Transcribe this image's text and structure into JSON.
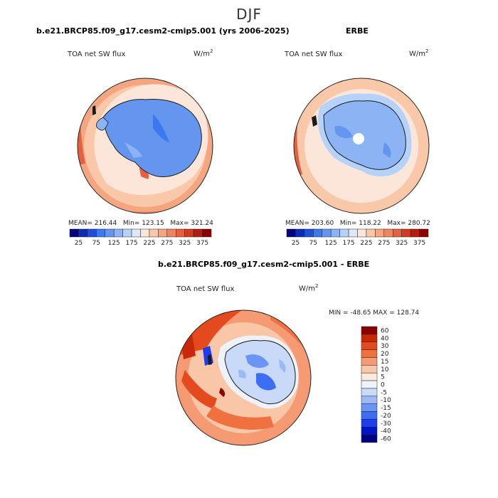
{
  "figure": {
    "season": "DJF",
    "top_left": {
      "title": "b.e21.BRCP85.f09_g17.cesm2-cmip5.001 (yrs 2006-2025)",
      "variable": "TOA net SW flux",
      "units_base": "W/m",
      "units_exp": "2",
      "mean_label": "MEAN=",
      "mean": "216.44",
      "min_label": "Min=",
      "min": "123.15",
      "max_label": "Max=",
      "max": "321.24"
    },
    "top_right": {
      "title": "ERBE",
      "variable": "TOA net SW flux",
      "units_base": "W/m",
      "units_exp": "2",
      "mean_label": "MEAN=",
      "mean": "203.60",
      "min_label": "Min=",
      "min": "118.22",
      "max_label": "Max=",
      "max": "280.72"
    },
    "bottom": {
      "title": "b.e21.BRCP85.f09_g17.cesm2-cmip5.001 - ERBE",
      "variable": "TOA net SW flux",
      "units_base": "W/m",
      "units_exp": "2",
      "minmax_text": "MIN = -48.65 MAX = 128.74"
    }
  },
  "chart_data": [
    {
      "type": "heatmap",
      "title": "b.e21.BRCP85.f09_g17.cesm2-cmip5.001 (yrs 2006-2025)",
      "projection": "south polar stereographic",
      "variable": "TOA net SW flux",
      "units": "W/m2",
      "stats": {
        "mean": 216.44,
        "min": 123.15,
        "max": 321.24
      },
      "colorbar_levels": [
        25,
        50,
        75,
        100,
        125,
        150,
        175,
        200,
        225,
        250,
        275,
        300,
        325,
        350,
        375
      ],
      "colorbar_tick_labels": [
        "25",
        "75",
        "125",
        "175",
        "225",
        "275",
        "325",
        "375"
      ],
      "colorbar_colors": [
        "#000080",
        "#0a2db4",
        "#1e50dc",
        "#3c78f0",
        "#6496f0",
        "#8cb4f5",
        "#b4d2fa",
        "#dce9fb",
        "#fbe6d9",
        "#f9c8a8",
        "#f5a680",
        "#ef8460",
        "#e4603e",
        "#d03c22",
        "#b41e0e",
        "#8c0000"
      ]
    },
    {
      "type": "heatmap",
      "title": "ERBE",
      "projection": "south polar stereographic",
      "variable": "TOA net SW flux",
      "units": "W/m2",
      "stats": {
        "mean": 203.6,
        "min": 118.22,
        "max": 280.72
      },
      "colorbar_levels": [
        25,
        50,
        75,
        100,
        125,
        150,
        175,
        200,
        225,
        250,
        275,
        300,
        325,
        350,
        375
      ],
      "colorbar_tick_labels": [
        "25",
        "75",
        "125",
        "175",
        "225",
        "275",
        "325",
        "375"
      ],
      "colorbar_colors": [
        "#000080",
        "#0a2db4",
        "#1e50dc",
        "#3c78f0",
        "#6496f0",
        "#8cb4f5",
        "#b4d2fa",
        "#dce9fb",
        "#fbe6d9",
        "#f9c8a8",
        "#f5a680",
        "#ef8460",
        "#e4603e",
        "#d03c22",
        "#b41e0e",
        "#8c0000"
      ]
    },
    {
      "type": "heatmap",
      "title": "b.e21.BRCP85.f09_g17.cesm2-cmip5.001 - ERBE",
      "projection": "south polar stereographic",
      "variable": "TOA net SW flux difference",
      "units": "W/m2",
      "stats": {
        "min": -48.65,
        "max": 128.74
      },
      "colorbar_levels": [
        -60,
        -40,
        -30,
        -20,
        -15,
        -10,
        -5,
        0,
        5,
        10,
        15,
        20,
        30,
        40,
        60
      ],
      "colorbar_tick_labels": [
        "60",
        "40",
        "30",
        "20",
        "15",
        "10",
        "5",
        "0",
        "-5",
        "-10",
        "-15",
        "-20",
        "-30",
        "-40",
        "-60"
      ],
      "colorbar_colors": [
        "#000080",
        "#0014c8",
        "#1e3cf0",
        "#3c6ef5",
        "#6a95f5",
        "#9ab9f5",
        "#c8daf8",
        "#eef3fa",
        "#fbe9de",
        "#f9c6a8",
        "#f59a72",
        "#f07040",
        "#e44a1e",
        "#c82808",
        "#8c0000"
      ]
    }
  ]
}
